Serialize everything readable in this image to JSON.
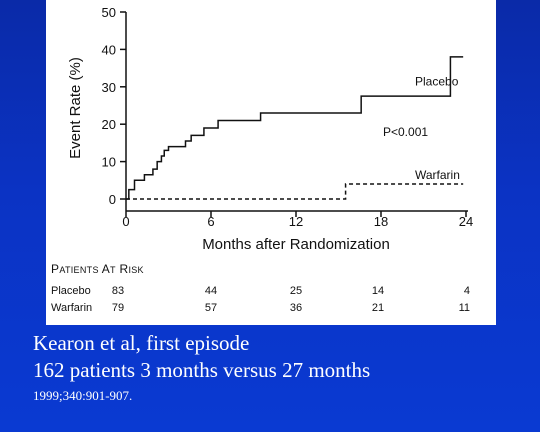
{
  "chart_data": {
    "type": "line",
    "xlabel": "Months after Randomization",
    "ylabel": "Event Rate (%)",
    "xlim": [
      0,
      24
    ],
    "ylim": [
      0,
      50
    ],
    "x_ticks": [
      "0",
      "6",
      "12",
      "18",
      "24"
    ],
    "y_ticks": [
      "0",
      "10",
      "20",
      "30",
      "40",
      "50"
    ],
    "grid": false,
    "series": [
      {
        "name": "Placebo",
        "style": "solid step",
        "x": [
          0,
          0.2,
          0.6,
          1.3,
          1.9,
          2.2,
          2.5,
          2.7,
          3.0,
          4.2,
          4.6,
          5.5,
          6.5,
          9.5,
          16.6,
          22.9,
          23.8
        ],
        "y": [
          0,
          2.5,
          5,
          6.5,
          8,
          10,
          11.5,
          13,
          14,
          15.5,
          17,
          19,
          21,
          23,
          27.5,
          38,
          38
        ]
      },
      {
        "name": "Warfarin",
        "style": "dashed step",
        "x": [
          0,
          15.5,
          23.8
        ],
        "y": [
          0,
          4,
          4
        ]
      }
    ],
    "annotations": [
      "P<0.001"
    ],
    "risk_table": {
      "header": "Patients at Risk",
      "rows": [
        {
          "label": "Placebo",
          "values": [
            "83",
            "44",
            "25",
            "14",
            "4"
          ]
        },
        {
          "label": "Warfarin",
          "values": [
            "79",
            "57",
            "36",
            "21",
            "11"
          ]
        }
      ]
    }
  },
  "caption": {
    "line1": "Kearon et al, first episode",
    "line2": "162 patients 3 months versus 27 months",
    "line3": "1999;340:901-907."
  }
}
